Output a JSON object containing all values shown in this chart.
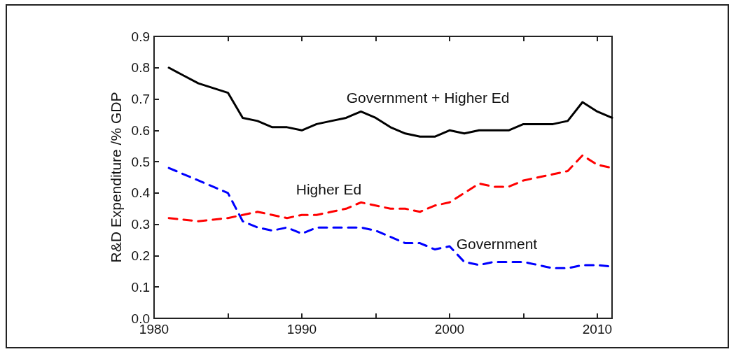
{
  "chart_data": {
    "type": "line",
    "ylabel": "R&D Expenditure /% GDP",
    "x": [
      1981,
      1982,
      1983,
      1984,
      1985,
      1986,
      1987,
      1988,
      1989,
      1990,
      1991,
      1992,
      1993,
      1994,
      1995,
      1996,
      1997,
      1998,
      1999,
      2000,
      2001,
      2002,
      2003,
      2004,
      2005,
      2006,
      2007,
      2008,
      2009,
      2010,
      2011
    ],
    "series": [
      {
        "name": "Government + Higher Ed",
        "color": "#000000",
        "line_style": "solid",
        "values": [
          0.8,
          0.775,
          0.75,
          0.735,
          0.72,
          0.64,
          0.63,
          0.61,
          0.61,
          0.6,
          0.62,
          0.63,
          0.64,
          0.66,
          0.64,
          0.61,
          0.59,
          0.58,
          0.58,
          0.6,
          0.59,
          0.6,
          0.6,
          0.6,
          0.62,
          0.62,
          0.62,
          0.63,
          0.69,
          0.66,
          0.64
        ]
      },
      {
        "name": "Higher Ed",
        "color": "#ff0000",
        "line_style": "dashed",
        "values": [
          0.32,
          0.315,
          0.31,
          0.315,
          0.32,
          0.33,
          0.34,
          0.33,
          0.32,
          0.33,
          0.33,
          0.34,
          0.35,
          0.37,
          0.36,
          0.35,
          0.35,
          0.34,
          0.36,
          0.37,
          0.4,
          0.43,
          0.42,
          0.42,
          0.44,
          0.45,
          0.46,
          0.47,
          0.52,
          0.49,
          0.48
        ]
      },
      {
        "name": "Government",
        "color": "#0000ff",
        "line_style": "dashed",
        "values": [
          0.48,
          0.46,
          0.44,
          0.42,
          0.4,
          0.31,
          0.29,
          0.28,
          0.29,
          0.27,
          0.29,
          0.29,
          0.29,
          0.29,
          0.28,
          0.26,
          0.24,
          0.24,
          0.22,
          0.23,
          0.18,
          0.17,
          0.18,
          0.18,
          0.18,
          0.17,
          0.16,
          0.16,
          0.17,
          0.17,
          0.165
        ]
      }
    ],
    "xlim": [
      1980,
      2011
    ],
    "xticks": [
      1980,
      {
        "value": 1985,
        "label": null
      },
      1990,
      {
        "value": 1995,
        "label": null
      },
      2000,
      {
        "value": 2005,
        "label": null
      },
      2010
    ],
    "ylim": [
      0,
      0.9
    ],
    "yticks": [
      {
        "value": 0,
        "label": "0.0"
      },
      0.1,
      0.2,
      0.3,
      0.4,
      0.5,
      0.6,
      0.7,
      0.8,
      0.9
    ],
    "grid": false,
    "legend": false,
    "marker": "none"
  }
}
